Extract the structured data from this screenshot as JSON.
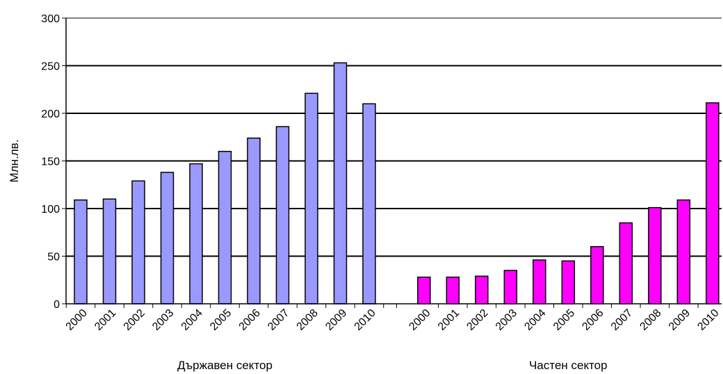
{
  "chart_data": {
    "type": "bar",
    "ylabel": "Млн.лв.",
    "ylim": [
      0,
      300
    ],
    "yticks": [
      0,
      50,
      100,
      150,
      200,
      250,
      300
    ],
    "grid": "horizontal",
    "groups": [
      {
        "label": "Държавен сектор",
        "color": "#9999ff",
        "categories": [
          "2000",
          "2001",
          "2002",
          "2003",
          "2004",
          "2005",
          "2006",
          "2007",
          "2008",
          "2009",
          "2010"
        ],
        "values": [
          109,
          110,
          129,
          138,
          147,
          160,
          174,
          186,
          221,
          253,
          210
        ]
      },
      {
        "label": "Частен сектор",
        "color": "#ff00ff",
        "categories": [
          "2000",
          "2001",
          "2002",
          "2003",
          "2004",
          "2005",
          "2006",
          "2007",
          "2008",
          "2009",
          "2010"
        ],
        "values": [
          28,
          28,
          29,
          35,
          46,
          45,
          60,
          85,
          101,
          109,
          211
        ]
      }
    ]
  }
}
